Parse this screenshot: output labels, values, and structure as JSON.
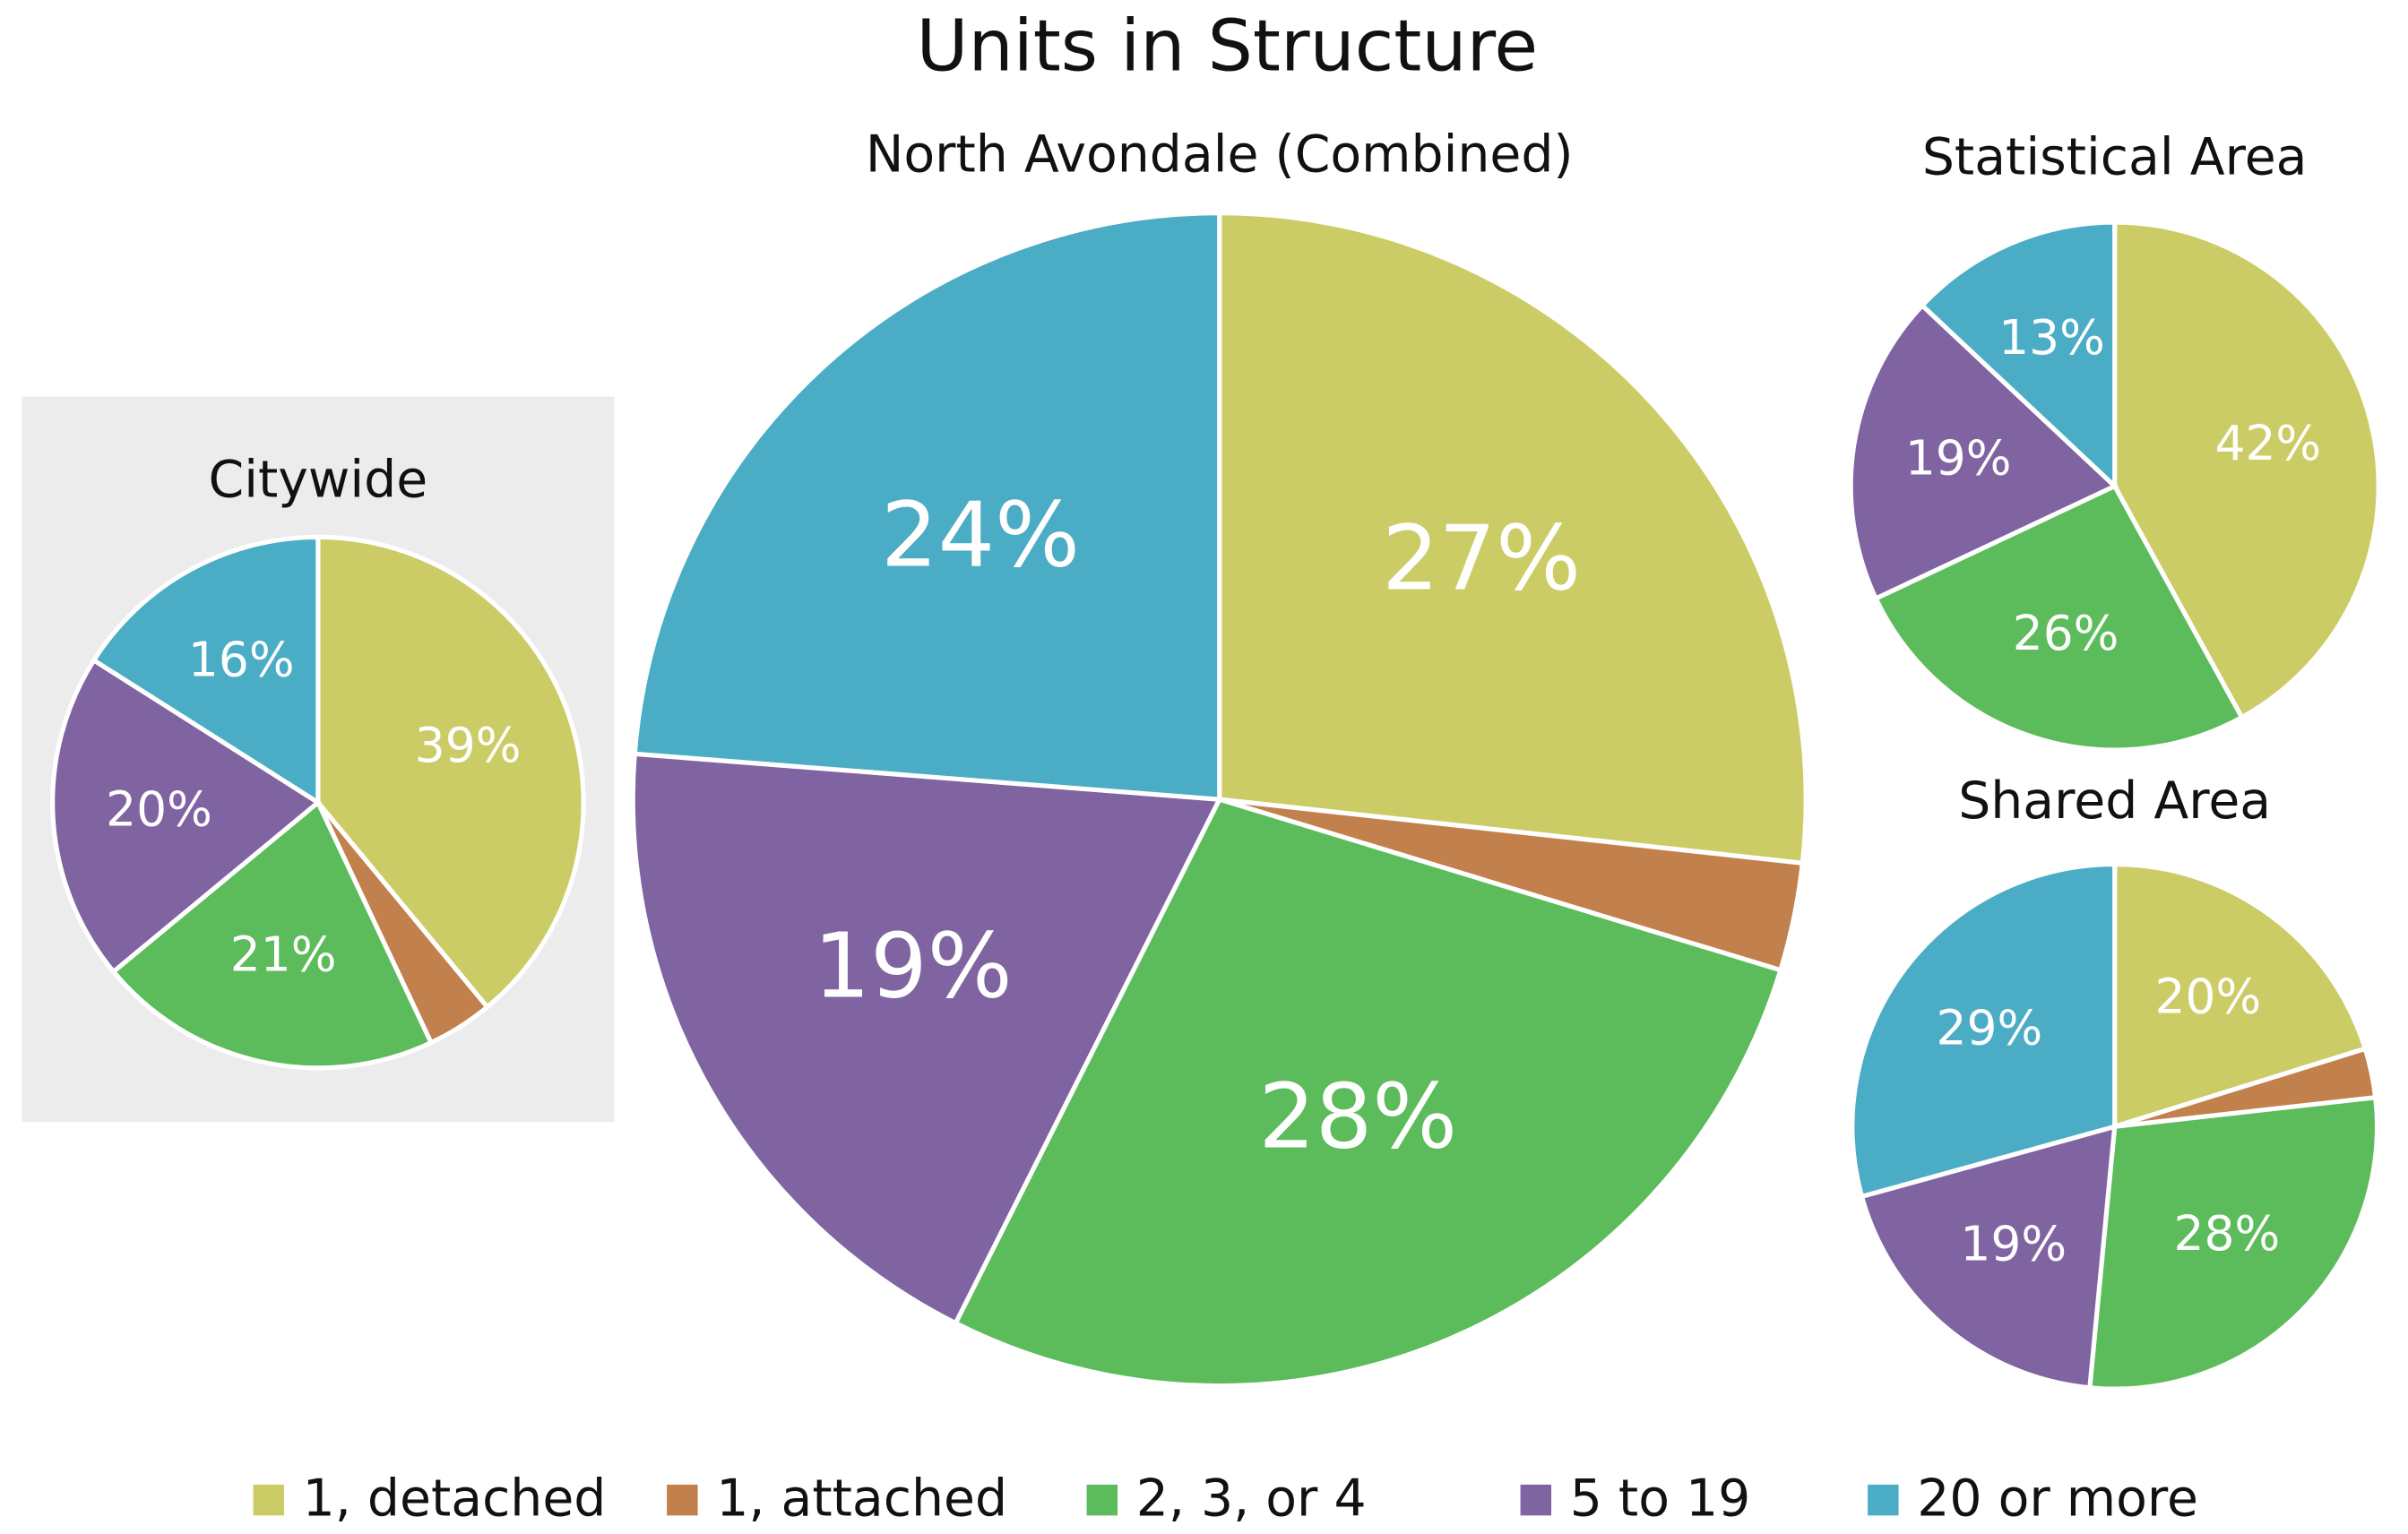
{
  "title": "Units in Structure",
  "chart_data": [
    {
      "type": "pie",
      "title": "Citywide",
      "categories": [
        "1, detached",
        "1, attached",
        "2, 3, or 4",
        "5 to 19",
        "20 or more"
      ],
      "values": [
        39,
        4,
        21,
        20,
        16
      ],
      "value_labels": [
        "39%",
        null,
        "21%",
        "20%",
        "16%"
      ],
      "colors": [
        "#cccc66",
        "#c2804c",
        "#5cbb5a",
        "#8064a2",
        "#4bacc6"
      ]
    },
    {
      "type": "pie",
      "title": "North Avondale (Combined)",
      "categories": [
        "1, detached",
        "1, attached",
        "2, 3, or 4",
        "5 to 19",
        "20 or more"
      ],
      "values": [
        27,
        3,
        28,
        19,
        24
      ],
      "value_labels": [
        "27%",
        null,
        "28%",
        "19%",
        "24%"
      ],
      "colors": [
        "#cccc66",
        "#c2804c",
        "#5cbb5a",
        "#8064a2",
        "#4bacc6"
      ]
    },
    {
      "type": "pie",
      "title": "Statistical Area",
      "categories": [
        "1, detached",
        "1, attached",
        "2, 3, or 4",
        "5 to 19",
        "20 or more"
      ],
      "values": [
        42,
        0,
        26,
        19,
        13
      ],
      "value_labels": [
        "42%",
        null,
        "26%",
        "19%",
        "13%"
      ],
      "colors": [
        "#cccc66",
        "#c2804c",
        "#5cbb5a",
        "#8064a2",
        "#4bacc6"
      ]
    },
    {
      "type": "pie",
      "title": "Shared Area",
      "categories": [
        "1, detached",
        "1, attached",
        "2, 3, or 4",
        "5 to 19",
        "20 or more"
      ],
      "values": [
        20,
        3,
        28,
        19,
        29
      ],
      "value_labels": [
        "20%",
        null,
        "28%",
        "19%",
        "29%"
      ],
      "colors": [
        "#cccc66",
        "#c2804c",
        "#5cbb5a",
        "#8064a2",
        "#4bacc6"
      ]
    }
  ]
}
